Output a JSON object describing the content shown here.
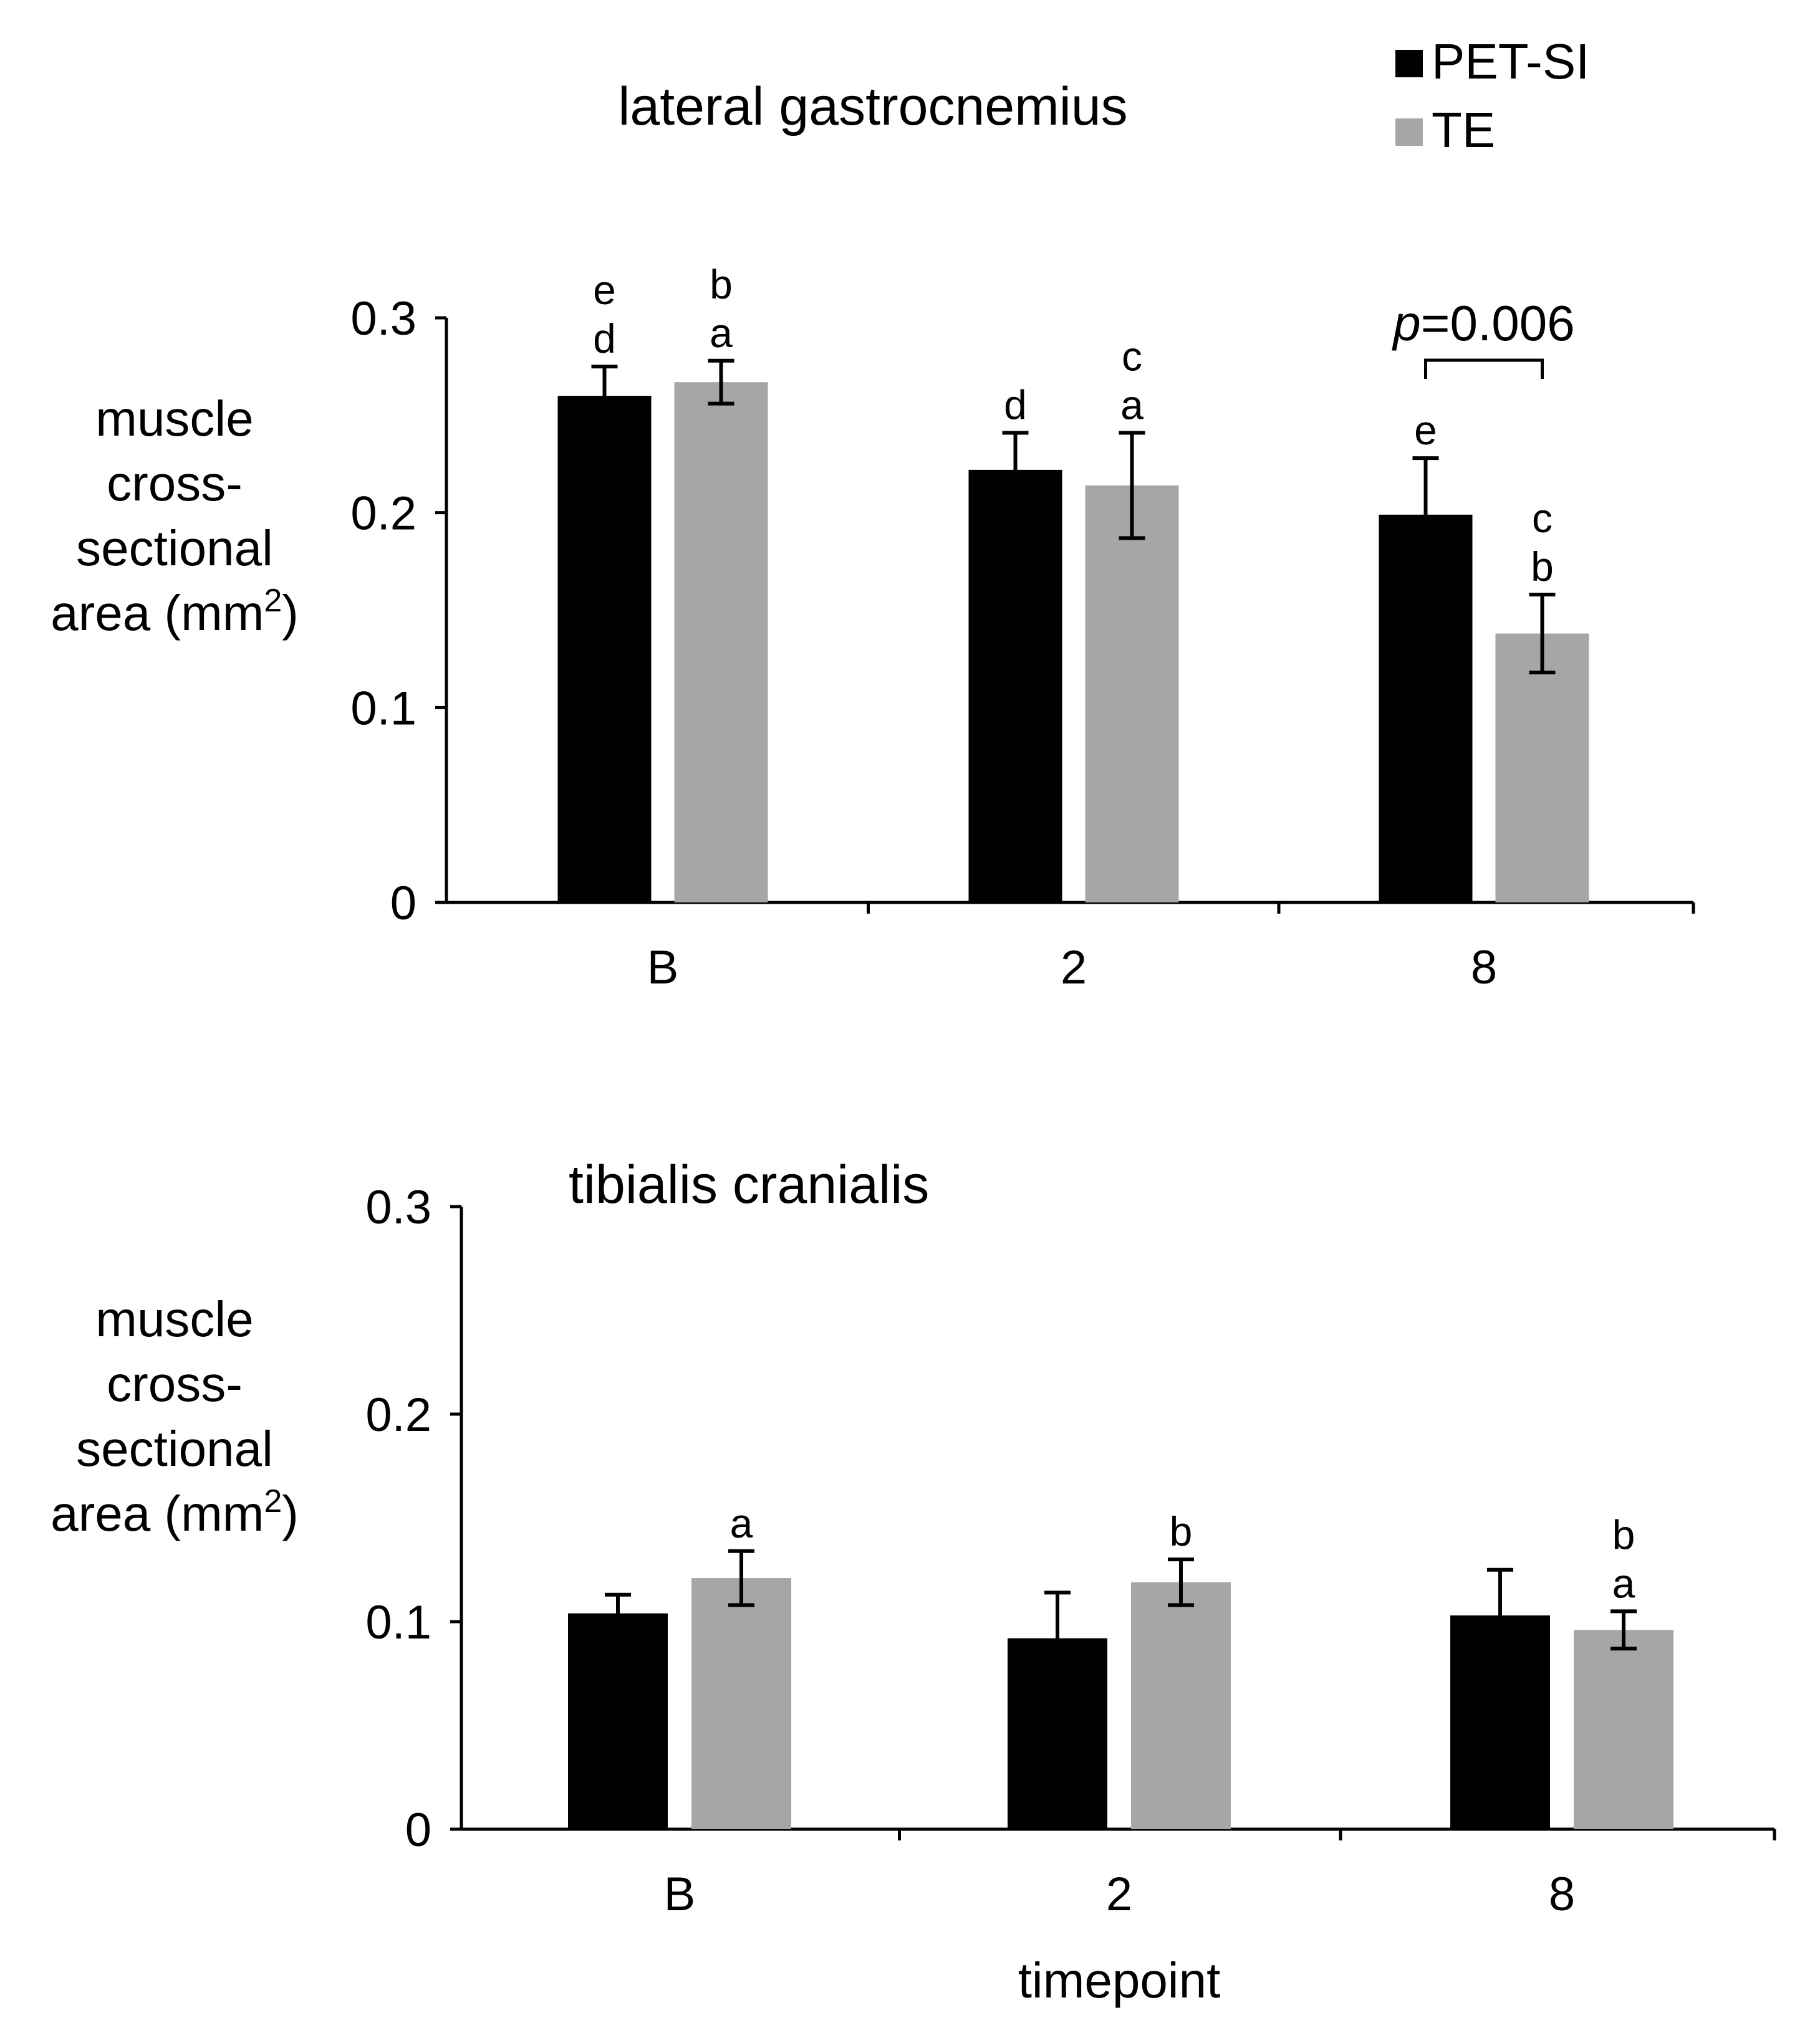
{
  "legend": {
    "items": [
      {
        "label": "PET-SI",
        "color": "#000000"
      },
      {
        "label": "TE",
        "color": "#a6a6a6"
      }
    ]
  },
  "colors": {
    "pet_si": "#000000",
    "te": "#a6a6a6",
    "axis": "#000000"
  },
  "chart_data": [
    {
      "type": "bar",
      "title": "lateral gastrocnemius",
      "ylabel_lines": [
        "muscle",
        "cross-",
        "sectional",
        "area (mm"
      ],
      "ylabel_superscript": "2",
      "ylabel_close": ")",
      "xlabel": "",
      "ylim": [
        0,
        0.3
      ],
      "yticks": [
        0,
        0.1,
        0.2,
        0.3
      ],
      "ytick_labels": [
        "0",
        "0.1",
        "0.2",
        "0.3"
      ],
      "categories": [
        "B",
        "2",
        "8"
      ],
      "series": [
        {
          "name": "PET-SI",
          "values": [
            0.26,
            0.222,
            0.199
          ],
          "errors": [
            0.015,
            0.019,
            0.029
          ],
          "letters": [
            [
              "e",
              "d"
            ],
            [
              "d"
            ],
            [
              "e"
            ]
          ]
        },
        {
          "name": "TE",
          "values": [
            0.267,
            0.214,
            0.138
          ],
          "errors": [
            0.011,
            0.027,
            0.02
          ],
          "letters": [
            [
              "b",
              "a"
            ],
            [
              "c",
              "a"
            ],
            [
              "c",
              "b"
            ]
          ]
        }
      ],
      "comparison": {
        "category_index": 2,
        "p_label": "p",
        "p_value": "=0.006"
      }
    },
    {
      "type": "bar",
      "title": "tibialis cranialis",
      "ylabel_lines": [
        "muscle",
        "cross-",
        "sectional",
        "area (mm"
      ],
      "ylabel_superscript": "2",
      "ylabel_close": ")",
      "xlabel": "timepoint",
      "ylim": [
        0,
        0.3
      ],
      "yticks": [
        0,
        0.1,
        0.2,
        0.3
      ],
      "ytick_labels": [
        "0",
        "0.1",
        "0.2",
        "0.3"
      ],
      "categories": [
        "B",
        "2",
        "8"
      ],
      "series": [
        {
          "name": "PET-SI",
          "values": [
            0.104,
            0.092,
            0.103
          ],
          "errors": [
            0.009,
            0.022,
            0.022
          ],
          "letters": [
            [],
            [],
            []
          ]
        },
        {
          "name": "TE",
          "values": [
            0.121,
            0.119,
            0.096
          ],
          "errors": [
            0.013,
            0.011,
            0.009
          ],
          "letters": [
            [
              "a"
            ],
            [
              "b"
            ],
            [
              "b",
              "a"
            ]
          ]
        }
      ]
    }
  ]
}
